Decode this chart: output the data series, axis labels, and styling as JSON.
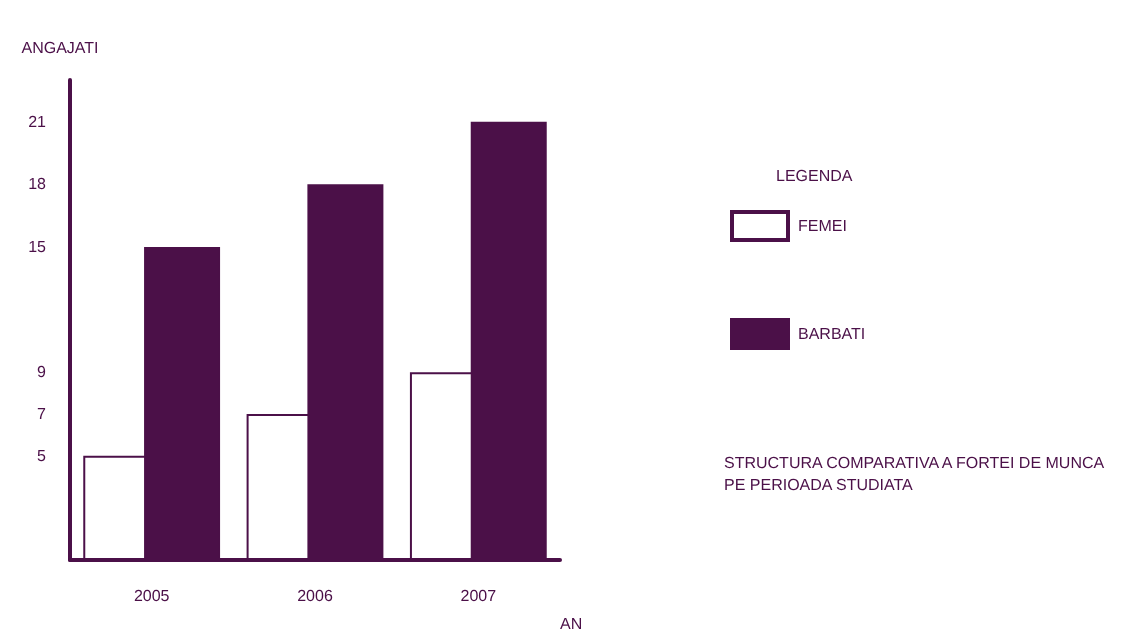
{
  "chart_data": {
    "type": "bar",
    "xlabel": "AN",
    "ylabel": "ANGAJATI",
    "legend_title": "LEGENDA",
    "categories": [
      "2005",
      "2006",
      "2007"
    ],
    "series": [
      {
        "name": "FEMEI",
        "color": "#ffffff",
        "values": [
          5,
          7,
          9
        ]
      },
      {
        "name": "BARBATI",
        "color": "#4b1048",
        "values": [
          15,
          18,
          21
        ]
      }
    ],
    "ylim": [
      0,
      23
    ],
    "yticks": [
      5,
      7,
      9,
      15,
      18,
      21
    ],
    "grid": false,
    "legend": "right",
    "annotations": [
      "STRUCTURA COMPARATIVA A FORTEI DE MUNCA PE PERIOADA STUDIATA"
    ]
  }
}
